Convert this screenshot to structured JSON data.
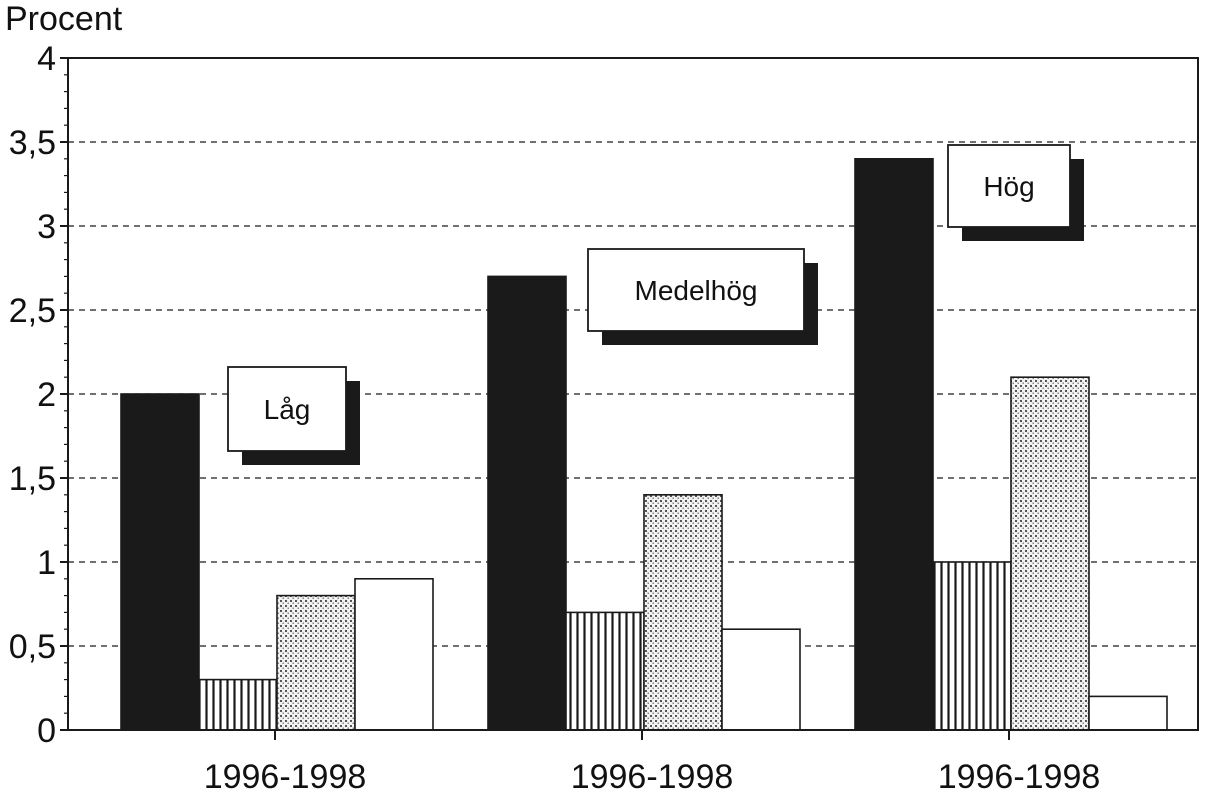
{
  "chart_data": {
    "type": "bar",
    "ylabel": "Procent",
    "xlabel": "",
    "ylim": [
      0,
      4
    ],
    "yticks": [
      "0",
      "0,5",
      "1",
      "1,5",
      "2",
      "2,5",
      "3",
      "3,5",
      "4"
    ],
    "grid": true,
    "categories": [
      "1996-1998",
      "1996-1998",
      "1996-1998"
    ],
    "group_labels": [
      "Låg",
      "Medelhög",
      "Hög"
    ],
    "series": [
      {
        "values": [
          2.0,
          2.7,
          3.4
        ],
        "pattern": "solid"
      },
      {
        "values": [
          0.3,
          0.7,
          1.0
        ],
        "pattern": "vertical-lines"
      },
      {
        "values": [
          0.8,
          1.4,
          2.1
        ],
        "pattern": "dots"
      },
      {
        "values": [
          0.9,
          0.6,
          0.2
        ],
        "pattern": "white"
      }
    ],
    "colors": {
      "ink": "#1a1a1a",
      "background": "#ffffff"
    }
  }
}
